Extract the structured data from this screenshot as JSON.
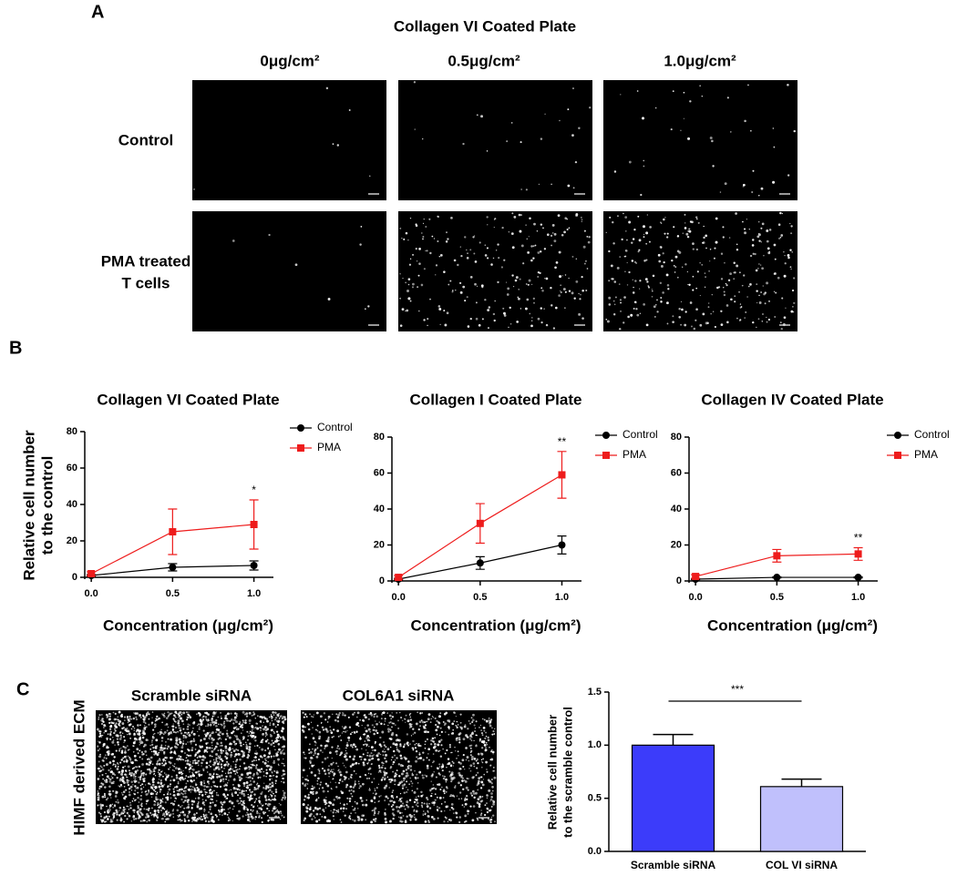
{
  "panel_labels": {
    "a": "A",
    "b": "B",
    "c": "C"
  },
  "panel_a": {
    "title": "Collagen VI Coated Plate",
    "columns": [
      "0μg/cm²",
      "0.5μg/cm²",
      "1.0μg/cm²"
    ],
    "rows": [
      [
        "Control"
      ],
      [
        "PMA treated",
        "T cells"
      ]
    ]
  },
  "panel_c_images": {
    "row_label": "HIMF derived ECM",
    "columns": [
      "Scramble siRNA",
      "COL6A1 siRNA"
    ]
  },
  "chart_data": [
    {
      "type": "line",
      "title": "Collagen VI Coated Plate",
      "xlabel": "Concentration (μg/cm²)",
      "ylabel": [
        "Relative cell number",
        "to the control"
      ],
      "x": [
        0,
        0.5,
        1.0
      ],
      "xlim": [
        -0.04,
        1.12
      ],
      "xticks": [
        {
          "value": 0,
          "label": "0.0"
        },
        {
          "value": 0.5,
          "label": "0.5"
        },
        {
          "value": 1.0,
          "label": "1.0"
        }
      ],
      "ylim": [
        0,
        80
      ],
      "yticks": [
        0,
        20,
        40,
        60,
        80
      ],
      "series": [
        {
          "name": "Control",
          "color": "#000000",
          "marker": "circle",
          "values": [
            1,
            5.5,
            6.5
          ],
          "errors": [
            0.5,
            2,
            2.5
          ]
        },
        {
          "name": "PMA",
          "color": "#ee1c1c",
          "marker": "square",
          "values": [
            2,
            25,
            29
          ],
          "errors": [
            1,
            12.5,
            13.5
          ]
        }
      ],
      "annotation": "*"
    },
    {
      "type": "line",
      "title": "Collagen I Coated Plate",
      "xlabel": "Concentration (μg/cm²)",
      "x": [
        0,
        0.5,
        1.0
      ],
      "xlim": [
        -0.04,
        1.12
      ],
      "xticks": [
        {
          "value": 0,
          "label": "0.0"
        },
        {
          "value": 0.5,
          "label": "0.5"
        },
        {
          "value": 1.0,
          "label": "1.0"
        }
      ],
      "ylim": [
        0,
        80
      ],
      "yticks": [
        0,
        20,
        40,
        60,
        80
      ],
      "series": [
        {
          "name": "Control",
          "color": "#000000",
          "marker": "circle",
          "values": [
            1,
            10,
            20
          ],
          "errors": [
            0.5,
            3.5,
            5
          ]
        },
        {
          "name": "PMA",
          "color": "#ee1c1c",
          "marker": "square",
          "values": [
            2,
            32,
            59
          ],
          "errors": [
            1,
            11,
            13
          ]
        }
      ],
      "annotation": "**"
    },
    {
      "type": "line",
      "title": "Collagen IV Coated Plate",
      "xlabel": "Concentration (μg/cm²)",
      "x": [
        0,
        0.5,
        1.0
      ],
      "xlim": [
        -0.04,
        1.12
      ],
      "xticks": [
        {
          "value": 0,
          "label": "0.0"
        },
        {
          "value": 0.5,
          "label": "0.5"
        },
        {
          "value": 1.0,
          "label": "1.0"
        }
      ],
      "ylim": [
        0,
        80
      ],
      "yticks": [
        0,
        20,
        40,
        60,
        80
      ],
      "series": [
        {
          "name": "Control",
          "color": "#000000",
          "marker": "circle",
          "values": [
            1,
            2,
            2
          ],
          "errors": [
            0.3,
            0.3,
            0.3
          ]
        },
        {
          "name": "PMA",
          "color": "#ee1c1c",
          "marker": "square",
          "values": [
            2.5,
            14,
            15
          ],
          "errors": [
            1,
            3.5,
            3.5
          ]
        }
      ],
      "annotation": "**"
    },
    {
      "type": "bar",
      "ylabel": [
        "Relative cell number",
        "to the scramble control"
      ],
      "categories": [
        "Scramble siRNA",
        "COL VI siRNA"
      ],
      "values": [
        1.0,
        0.61
      ],
      "errors": [
        0.1,
        0.07
      ],
      "colors": [
        "#3c3cfa",
        "#c0c0fc"
      ],
      "ylim": [
        0,
        1.5
      ],
      "yticks": [
        {
          "value": 0,
          "label": "0.0"
        },
        {
          "value": 0.5,
          "label": "0.5"
        },
        {
          "value": 1.0,
          "label": "1.0"
        },
        {
          "value": 1.5,
          "label": "1.5"
        }
      ],
      "annotation": "***"
    }
  ]
}
